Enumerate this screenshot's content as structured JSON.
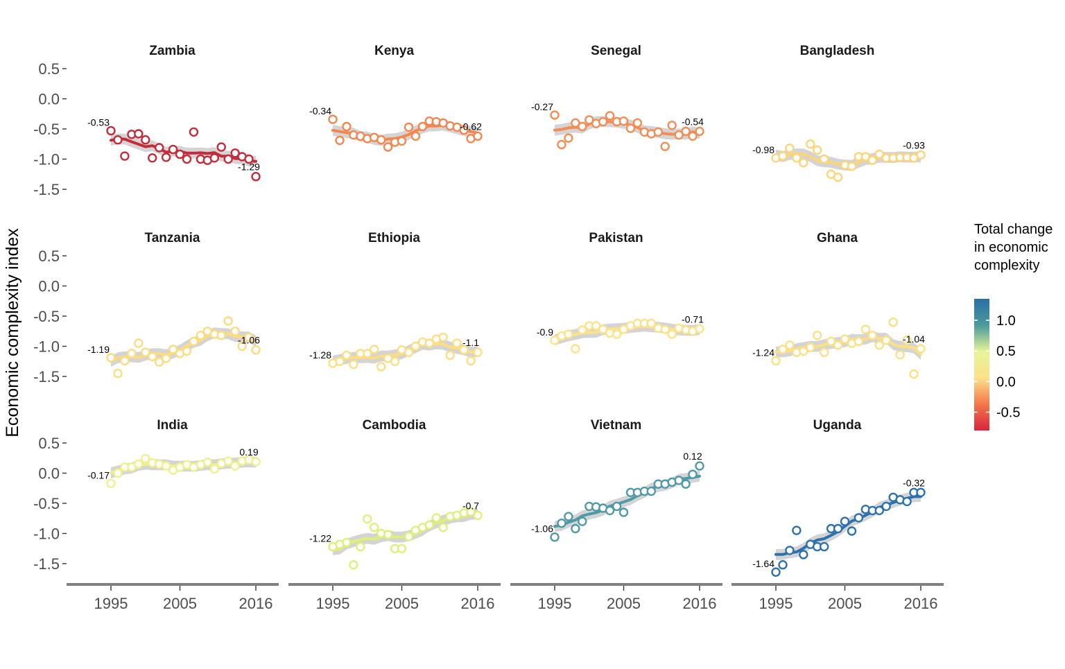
{
  "chart_data": {
    "type": "scatter",
    "ylabel": "Economic complexity index",
    "xlabel": "",
    "x_ticks": [
      "1995",
      "2005",
      "2016"
    ],
    "x_range": [
      1995,
      2016
    ],
    "y_ticks": [
      "0.5",
      "0.0",
      "-0.5",
      "-1.0",
      "-1.5"
    ],
    "y_range": [
      -1.5,
      0.5
    ],
    "legend": {
      "title": "Total change in economic complexity",
      "ticks": [
        "1.0",
        "0.5",
        "0.0",
        "-0.5"
      ],
      "range": [
        -0.8,
        1.35
      ],
      "colors": [
        "#d7263d",
        "#f4764a",
        "#fee08b",
        "#e6f598",
        "#4a9a9a",
        "#2b6ea8"
      ],
      "position": "right"
    },
    "panels": [
      {
        "name": "Zambia",
        "color": "#c42b3b",
        "start_label": "-0.53",
        "end_label": "-1.29",
        "values": [
          -0.53,
          -0.68,
          -0.95,
          -0.59,
          -0.58,
          -0.68,
          -0.98,
          -0.81,
          -0.97,
          -0.84,
          -0.92,
          -1.0,
          -0.55,
          -1.0,
          -1.02,
          -0.98,
          -0.8,
          -1.0,
          -0.9,
          -0.96,
          -1.0,
          -1.29
        ]
      },
      {
        "name": "Kenya",
        "color": "#f4874f",
        "start_label": "-0.34",
        "end_label": "-0.62",
        "values": [
          -0.34,
          -0.69,
          -0.46,
          -0.6,
          -0.62,
          -0.66,
          -0.64,
          -0.68,
          -0.8,
          -0.72,
          -0.7,
          -0.47,
          -0.62,
          -0.46,
          -0.37,
          -0.38,
          -0.4,
          -0.45,
          -0.47,
          -0.52,
          -0.66,
          -0.62
        ]
      },
      {
        "name": "Senegal",
        "color": "#f48c55",
        "start_label": "-0.27",
        "end_label": "-0.54",
        "values": [
          -0.27,
          -0.76,
          -0.65,
          -0.4,
          -0.46,
          -0.35,
          -0.41,
          -0.38,
          -0.28,
          -0.38,
          -0.37,
          -0.49,
          -0.4,
          -0.55,
          -0.58,
          -0.55,
          -0.79,
          -0.44,
          -0.6,
          -0.54,
          -0.62,
          -0.54
        ]
      },
      {
        "name": "Bangladesh",
        "color": "#fcd57a",
        "start_label": "-0.98",
        "end_label": "-0.93",
        "values": [
          -0.98,
          -0.95,
          -0.82,
          -0.98,
          -1.06,
          -0.75,
          -0.85,
          -1.0,
          -1.25,
          -1.3,
          -1.1,
          -1.12,
          -0.96,
          -0.96,
          -1.02,
          -0.92,
          -0.98,
          -0.98,
          -0.97,
          -0.97,
          -0.98,
          -0.93
        ]
      },
      {
        "name": "Tanzania",
        "color": "#fcdc80",
        "start_label": "-1.19",
        "end_label": "-1.06",
        "values": [
          -1.19,
          -1.45,
          -1.24,
          -1.12,
          -0.95,
          -1.1,
          -1.17,
          -1.26,
          -1.2,
          -1.05,
          -1.12,
          -1.08,
          -0.92,
          -0.82,
          -0.75,
          -0.8,
          -0.82,
          -0.58,
          -0.75,
          -1.0,
          -0.85,
          -1.06
        ]
      },
      {
        "name": "Ethiopia",
        "color": "#fcdf83",
        "start_label": "-1.28",
        "end_label": "-1.1",
        "values": [
          -1.28,
          -1.25,
          -1.15,
          -1.3,
          -1.12,
          -1.12,
          -1.05,
          -1.34,
          -1.2,
          -1.25,
          -1.06,
          -1.1,
          -1.0,
          -0.93,
          -0.95,
          -0.88,
          -0.85,
          -1.15,
          -0.95,
          -1.06,
          -1.24,
          -1.1
        ]
      },
      {
        "name": "Pakistan",
        "color": "#fce389",
        "start_label": "-0.9",
        "end_label": "-0.71",
        "values": [
          -0.9,
          -0.83,
          -0.8,
          -1.04,
          -0.73,
          -0.66,
          -0.66,
          -0.72,
          -0.78,
          -0.8,
          -0.72,
          -0.66,
          -0.62,
          -0.62,
          -0.62,
          -0.7,
          -0.72,
          -0.8,
          -0.7,
          -0.73,
          -0.75,
          -0.71
        ]
      },
      {
        "name": "Ghana",
        "color": "#fce086",
        "start_label": "-1.24",
        "end_label": "-1.04",
        "values": [
          -1.24,
          -1.05,
          -0.98,
          -1.1,
          -1.08,
          -1.02,
          -0.82,
          -1.1,
          -0.92,
          -0.98,
          -0.88,
          -0.95,
          -0.92,
          -0.72,
          -0.82,
          -0.98,
          -0.9,
          -0.6,
          -1.14,
          -0.9,
          -1.46,
          -1.04
        ]
      },
      {
        "name": "India",
        "color": "#eef18e",
        "start_label": "-0.17",
        "end_label": "0.19",
        "values": [
          -0.17,
          0.0,
          0.1,
          0.1,
          0.15,
          0.24,
          0.17,
          0.15,
          0.12,
          0.05,
          0.1,
          0.14,
          0.1,
          0.14,
          0.18,
          0.07,
          0.16,
          0.2,
          0.12,
          0.2,
          0.22,
          0.19
        ]
      },
      {
        "name": "Cambodia",
        "color": "#dff07a",
        "start_label": "-1.22",
        "end_label": "-0.7",
        "values": [
          -1.22,
          -1.18,
          -1.15,
          -1.52,
          -1.22,
          -0.76,
          -0.9,
          -1.0,
          -1.02,
          -1.25,
          -1.25,
          -1.05,
          -0.95,
          -0.9,
          -0.86,
          -0.74,
          -0.9,
          -0.72,
          -0.7,
          -0.66,
          -0.64,
          -0.7
        ]
      },
      {
        "name": "Vietnam",
        "color": "#4f9aa6",
        "start_label": "-1.06",
        "end_label": "0.12",
        "values": [
          -1.06,
          -0.83,
          -0.72,
          -0.92,
          -0.8,
          -0.55,
          -0.56,
          -0.58,
          -0.62,
          -0.55,
          -0.65,
          -0.32,
          -0.32,
          -0.3,
          -0.3,
          -0.18,
          -0.18,
          -0.15,
          -0.12,
          -0.18,
          -0.02,
          0.12
        ]
      },
      {
        "name": "Uganda",
        "color": "#2d72ad",
        "start_label": "-1.64",
        "end_label": "-0.32",
        "values": [
          -1.64,
          -1.52,
          -1.28,
          -0.95,
          -1.35,
          -1.18,
          -1.22,
          -1.22,
          -0.92,
          -0.92,
          -0.8,
          -0.96,
          -0.74,
          -0.6,
          -0.62,
          -0.62,
          -0.55,
          -0.4,
          -0.44,
          -0.47,
          -0.32,
          -0.32
        ]
      }
    ]
  }
}
